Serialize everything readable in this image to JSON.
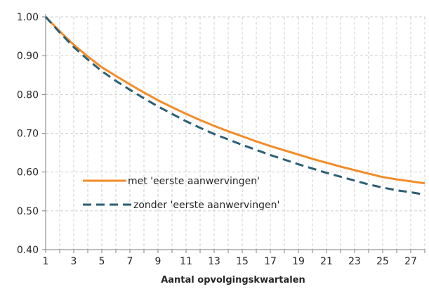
{
  "chart_data": {
    "type": "line",
    "title": "",
    "xlabel": "Aantal opvolgingskwartalen",
    "ylabel": "",
    "xlim": [
      1,
      28
    ],
    "ylim": [
      0.4,
      1.0
    ],
    "x_ticks": [
      1,
      3,
      5,
      7,
      9,
      11,
      13,
      15,
      17,
      19,
      21,
      23,
      25,
      27
    ],
    "y_ticks": [
      "0.40",
      "0.50",
      "0.60",
      "0.70",
      "0.80",
      "0.90",
      "1.00"
    ],
    "grid": true,
    "legend_position": "center-left",
    "series": [
      {
        "name": "met 'eerste aanwervingen'",
        "color": "#F28C28",
        "style": "solid",
        "x": [
          1,
          2,
          3,
          4,
          5,
          6,
          7,
          8,
          9,
          10,
          11,
          12,
          13,
          14,
          15,
          16,
          17,
          18,
          19,
          20,
          21,
          22,
          23,
          24,
          25,
          26,
          27,
          28
        ],
        "values": [
          1.0,
          0.963,
          0.928,
          0.898,
          0.87,
          0.848,
          0.826,
          0.805,
          0.785,
          0.767,
          0.75,
          0.734,
          0.719,
          0.705,
          0.692,
          0.679,
          0.667,
          0.656,
          0.645,
          0.634,
          0.624,
          0.614,
          0.605,
          0.596,
          0.587,
          0.581,
          0.576,
          0.571
        ]
      },
      {
        "name": "zonder 'eerste aanwervingen'",
        "color": "#2C5F73",
        "style": "dashed",
        "x": [
          1,
          2,
          3,
          4,
          5,
          6,
          7,
          8,
          9,
          10,
          11,
          12,
          13,
          14,
          15,
          16,
          17,
          18,
          19,
          20,
          21,
          22,
          23,
          24,
          25,
          26,
          27,
          28
        ],
        "values": [
          1.0,
          0.96,
          0.922,
          0.89,
          0.86,
          0.835,
          0.812,
          0.79,
          0.769,
          0.75,
          0.731,
          0.714,
          0.698,
          0.684,
          0.67,
          0.657,
          0.644,
          0.632,
          0.62,
          0.609,
          0.598,
          0.588,
          0.578,
          0.568,
          0.56,
          0.553,
          0.548,
          0.542
        ]
      }
    ]
  }
}
